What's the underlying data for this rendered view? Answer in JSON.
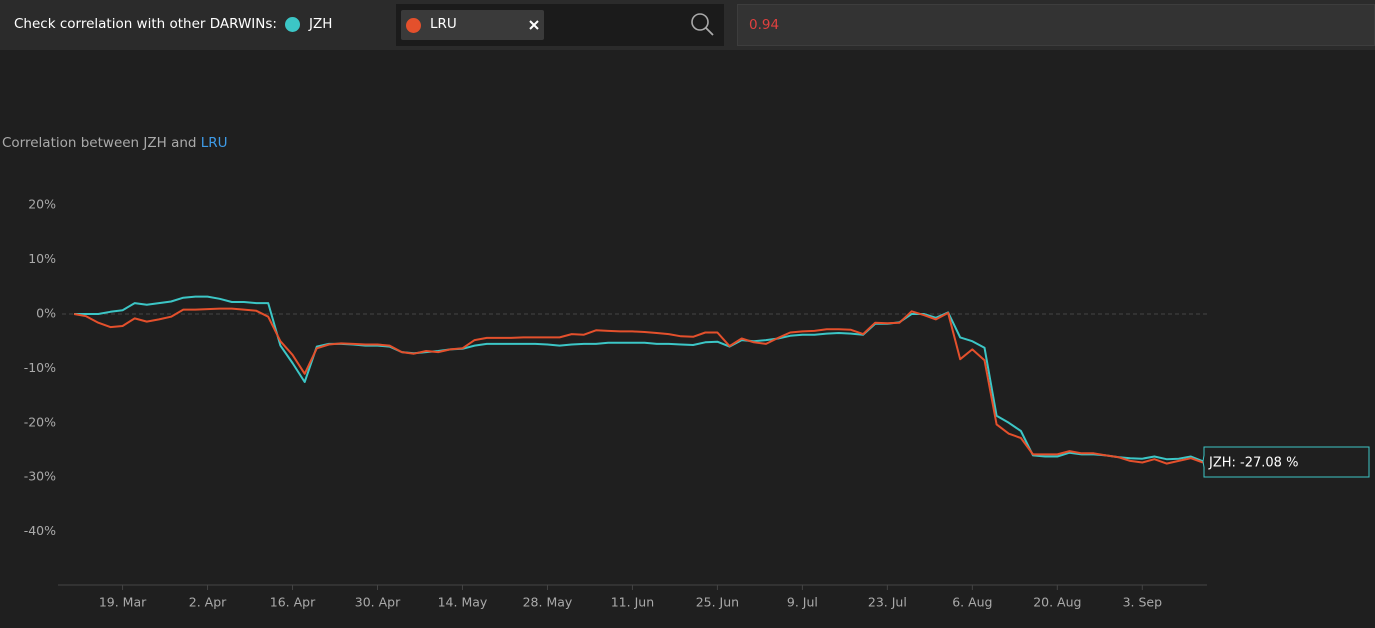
{
  "toolbar": {
    "label": "Check correlation with other DARWINs:",
    "correlation": "0.94"
  },
  "chart_data": {
    "type": "line",
    "title": "Correlation between JZH and",
    "categories": [
      null,
      null,
      null,
      null,
      "19. Mar",
      null,
      null,
      null,
      null,
      null,
      null,
      "2. Apr",
      null,
      null,
      null,
      null,
      null,
      null,
      "16. Apr",
      null,
      null,
      null,
      null,
      null,
      null,
      "30. Apr",
      null,
      null,
      null,
      null,
      null,
      null,
      "14. May",
      null,
      null,
      null,
      null,
      null,
      null,
      "28. May",
      null,
      null,
      null,
      null,
      null,
      null,
      "11. Jun",
      null,
      null,
      null,
      null,
      null,
      null,
      "25. Jun",
      null,
      null,
      null,
      null,
      null,
      null,
      "9. Jul",
      null,
      null,
      null,
      null,
      null,
      null,
      "23. Jul",
      null,
      null,
      null,
      null,
      null,
      null,
      "6. Aug",
      null,
      null,
      null,
      null,
      null,
      null,
      "20. Aug",
      null,
      null,
      null,
      null,
      null,
      null,
      "3. Sep",
      null,
      null,
      null,
      null,
      null
    ],
    "series": [
      {
        "name": "JZH",
        "color": "#3cc6c6",
        "values": [
          0,
          0,
          0,
          0.4,
          0.7,
          2,
          1.7,
          2,
          2.3,
          3,
          3.2,
          3.2,
          2.8,
          2.2,
          2.2,
          2,
          2,
          -5.8,
          -9,
          -12.5,
          -6,
          -5.5,
          -5.5,
          -5.6,
          -5.8,
          -5.8,
          -6,
          -7,
          -7.2,
          -7,
          -6.8,
          -6.5,
          -6.4,
          -5.8,
          -5.5,
          -5.5,
          -5.5,
          -5.5,
          -5.5,
          -5.6,
          -5.8,
          -5.6,
          -5.5,
          -5.5,
          -5.3,
          -5.3,
          -5.3,
          -5.3,
          -5.5,
          -5.5,
          -5.6,
          -5.7,
          -5.2,
          -5.1,
          -6,
          -4.8,
          -5,
          -4.8,
          -4.5,
          -4,
          -3.8,
          -3.8,
          -3.6,
          -3.5,
          -3.6,
          -3.8,
          -1.8,
          -1.8,
          -1.5,
          0,
          0,
          -0.7,
          0.3,
          -4.3,
          -5,
          -6.2,
          -18.7,
          -20,
          -21.5,
          -26,
          -26.2,
          -26.2,
          -25.5,
          -25.8,
          -25.8,
          -26,
          -26.3,
          -26.5,
          -26.6,
          -26.2,
          -26.7,
          -26.6,
          -26.2,
          -27.08
        ]
      },
      {
        "name": "LRU",
        "color": "#e4502c",
        "values": [
          0,
          -0.4,
          -1.6,
          -2.4,
          -2.2,
          -0.8,
          -1.4,
          -1,
          -0.5,
          0.8,
          0.8,
          0.9,
          1,
          1,
          0.8,
          0.6,
          -0.5,
          -5,
          -7.5,
          -11,
          -6.3,
          -5.6,
          -5.4,
          -5.5,
          -5.6,
          -5.6,
          -5.8,
          -7,
          -7.3,
          -6.8,
          -7,
          -6.5,
          -6.3,
          -4.8,
          -4.4,
          -4.4,
          -4.4,
          -4.3,
          -4.3,
          -4.3,
          -4.3,
          -3.7,
          -3.8,
          -3,
          -3.1,
          -3.2,
          -3.2,
          -3.3,
          -3.5,
          -3.7,
          -4.1,
          -4.2,
          -3.4,
          -3.4,
          -5.9,
          -4.5,
          -5.2,
          -5.5,
          -4.4,
          -3.4,
          -3.2,
          -3.1,
          -2.8,
          -2.8,
          -2.9,
          -3.7,
          -1.6,
          -1.7,
          -1.6,
          0.5,
          -0.2,
          -1,
          0.2,
          -8.3,
          -6.5,
          -8.5,
          -20.3,
          -22,
          -22.8,
          -25.8,
          -25.8,
          -25.8,
          -25.2,
          -25.6,
          -25.6,
          -26,
          -26.3,
          -27,
          -27.3,
          -26.7,
          -27.5,
          -27,
          -26.5,
          -27.3
        ]
      }
    ],
    "tooltip": "JZH: -27.08 %",
    "ylim": [
      -50,
      25
    ],
    "yticks": [
      {
        "value": 20,
        "label": "20%"
      },
      {
        "value": 10,
        "label": "10%"
      },
      {
        "value": 0,
        "label": "0%"
      },
      {
        "value": -10,
        "label": "-10%"
      },
      {
        "value": -20,
        "label": "-20%"
      },
      {
        "value": -30,
        "label": "-30%"
      },
      {
        "value": -40,
        "label": "-40%"
      }
    ],
    "zero_line": true,
    "grid": false
  }
}
